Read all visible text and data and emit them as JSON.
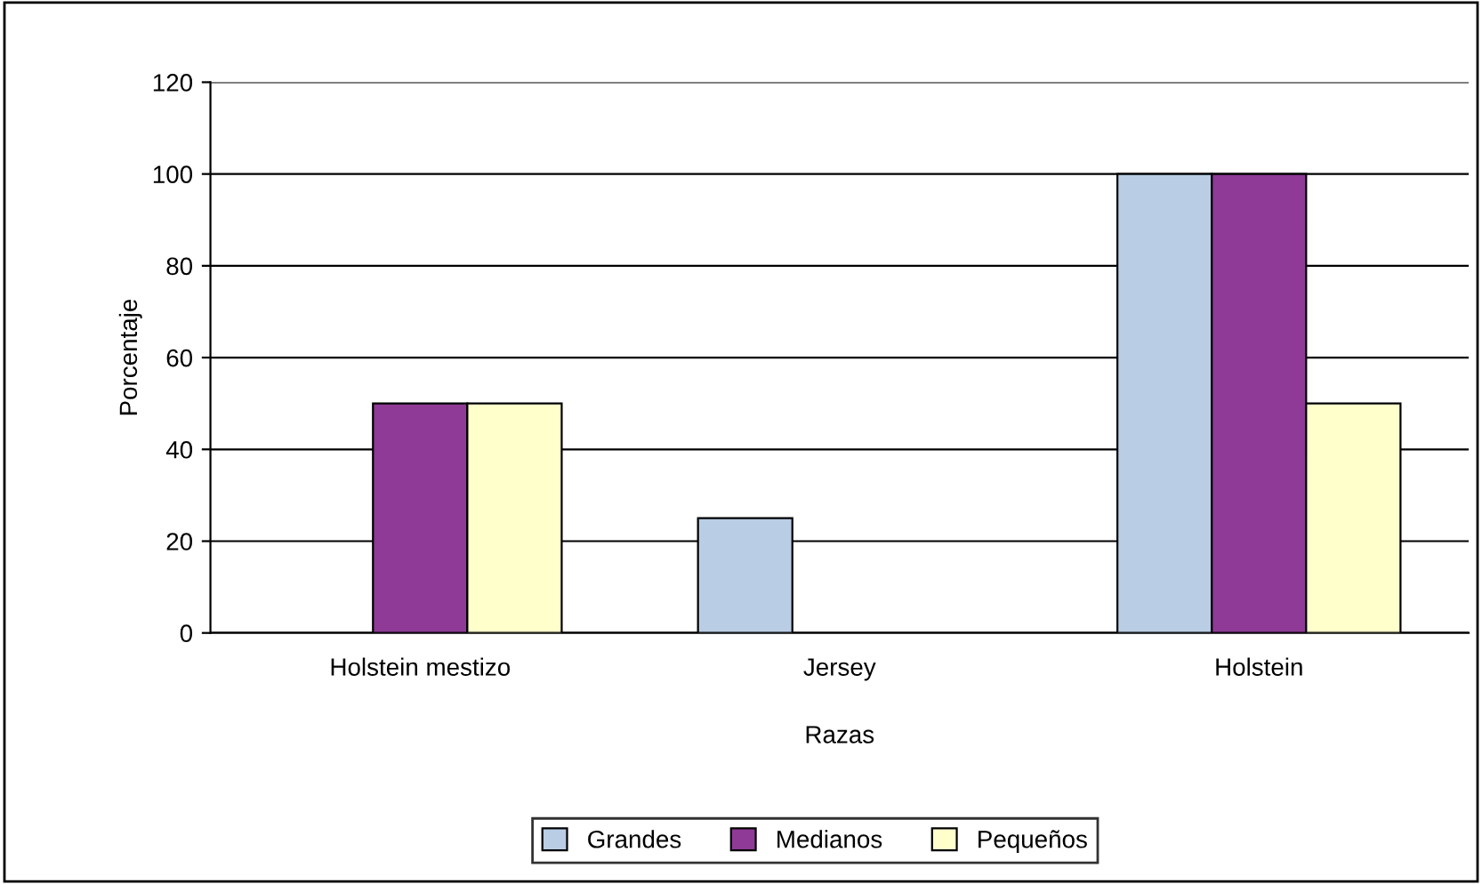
{
  "chart_data": {
    "type": "bar",
    "xlabel": "Razas",
    "ylabel": "Porcentaje",
    "categories": [
      "Holstein mestizo",
      "Jersey",
      "Holstein"
    ],
    "series": [
      {
        "name": "Grandes",
        "color": "#b9cde5",
        "values": [
          null,
          25,
          100
        ]
      },
      {
        "name": "Medianos",
        "color": "#8e3a96",
        "values": [
          50,
          null,
          100
        ]
      },
      {
        "name": "Pequeños",
        "color": "#ffffcc",
        "values": [
          50,
          null,
          50
        ]
      }
    ],
    "ylim": [
      0,
      120
    ],
    "yticks": [
      0,
      20,
      40,
      60,
      80,
      100,
      120
    ],
    "grid": "y",
    "legend": "bottom"
  }
}
